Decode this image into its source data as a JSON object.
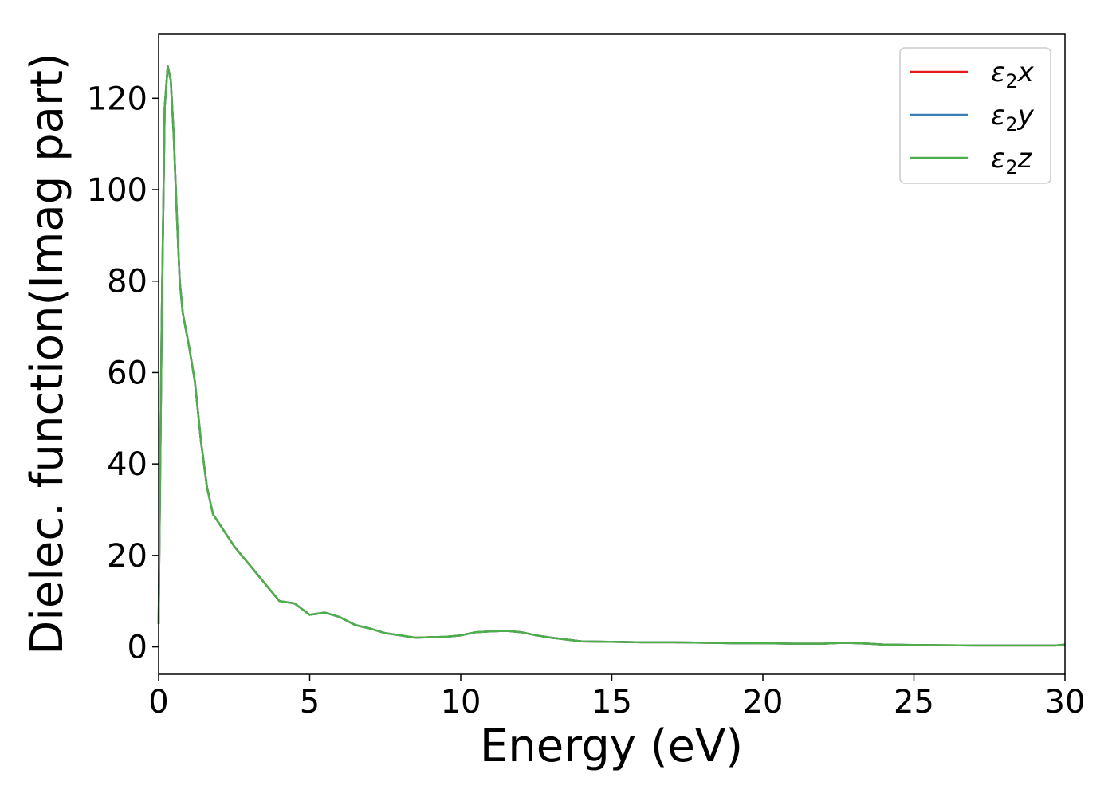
{
  "chart_data": {
    "type": "line",
    "title": "",
    "xlabel": "Energy (eV)",
    "ylabel": "Dielec. function(Imag part)",
    "xlim": [
      0,
      30
    ],
    "ylim": [
      -6,
      134
    ],
    "x_ticks": [
      0,
      5,
      10,
      15,
      20,
      25,
      30
    ],
    "y_ticks": [
      0,
      20,
      40,
      60,
      80,
      100,
      120
    ],
    "grid": false,
    "legend_position": "top-right",
    "series": [
      {
        "name": "ε2x",
        "legend_main": "ε",
        "legend_sub": "2",
        "legend_var": "x",
        "color": "#e41a1c",
        "x": [
          0,
          0.1,
          0.2,
          0.3,
          0.4,
          0.5,
          0.6,
          0.7,
          0.8,
          1.0,
          1.2,
          1.4,
          1.6,
          1.8,
          2.0,
          2.2,
          2.5,
          3.0,
          3.5,
          4.0,
          4.5,
          5.0,
          5.5,
          6.0,
          6.5,
          7.0,
          7.5,
          8.0,
          8.5,
          9.0,
          9.5,
          10.0,
          10.5,
          11.0,
          11.5,
          12.0,
          12.5,
          13.0,
          14.0,
          15.0,
          16.0,
          17.0,
          18.0,
          19.0,
          20.0,
          21.0,
          22.0,
          22.7,
          23.5,
          24.0,
          25.0,
          26.0,
          27.0,
          28.0,
          29.0,
          29.7,
          30.0
        ],
        "y": [
          5,
          70,
          118,
          127,
          124,
          112,
          95,
          80,
          73,
          66,
          58,
          45,
          35,
          29,
          27,
          25,
          22,
          18,
          14,
          10,
          9.5,
          7,
          7.5,
          6.5,
          4.8,
          4,
          3,
          2.5,
          2,
          2.1,
          2.2,
          2.5,
          3.2,
          3.4,
          3.5,
          3.2,
          2.5,
          2,
          1.2,
          1.1,
          1,
          1,
          0.9,
          0.8,
          0.8,
          0.7,
          0.7,
          0.9,
          0.7,
          0.5,
          0.4,
          0.35,
          0.3,
          0.3,
          0.3,
          0.3,
          0.5
        ]
      },
      {
        "name": "ε2y",
        "legend_main": "ε",
        "legend_sub": "2",
        "legend_var": "y",
        "color": "#377eb8",
        "x": [
          0,
          0.1,
          0.2,
          0.3,
          0.4,
          0.5,
          0.6,
          0.7,
          0.8,
          1.0,
          1.2,
          1.4,
          1.6,
          1.8,
          2.0,
          2.2,
          2.5,
          3.0,
          3.5,
          4.0,
          4.5,
          5.0,
          5.5,
          6.0,
          6.5,
          7.0,
          7.5,
          8.0,
          8.5,
          9.0,
          9.5,
          10.0,
          10.5,
          11.0,
          11.5,
          12.0,
          12.5,
          13.0,
          14.0,
          15.0,
          16.0,
          17.0,
          18.0,
          19.0,
          20.0,
          21.0,
          22.0,
          22.7,
          23.5,
          24.0,
          25.0,
          26.0,
          27.0,
          28.0,
          29.0,
          29.7,
          30.0
        ],
        "y": [
          5,
          70,
          118,
          127,
          124,
          112,
          95,
          80,
          73,
          66,
          58,
          45,
          35,
          29,
          27,
          25,
          22,
          18,
          14,
          10,
          9.5,
          7,
          7.5,
          6.5,
          4.8,
          4,
          3,
          2.5,
          2,
          2.1,
          2.2,
          2.5,
          3.2,
          3.4,
          3.5,
          3.2,
          2.5,
          2,
          1.2,
          1.1,
          1,
          1,
          0.9,
          0.8,
          0.8,
          0.7,
          0.7,
          0.9,
          0.7,
          0.5,
          0.4,
          0.35,
          0.3,
          0.3,
          0.3,
          0.3,
          0.5
        ]
      },
      {
        "name": "ε2z",
        "legend_main": "ε",
        "legend_sub": "2",
        "legend_var": "z",
        "color": "#4daf4a",
        "x": [
          0,
          0.1,
          0.2,
          0.3,
          0.4,
          0.5,
          0.6,
          0.7,
          0.8,
          1.0,
          1.2,
          1.4,
          1.6,
          1.8,
          2.0,
          2.2,
          2.5,
          3.0,
          3.5,
          4.0,
          4.5,
          5.0,
          5.5,
          6.0,
          6.5,
          7.0,
          7.5,
          8.0,
          8.5,
          9.0,
          9.5,
          10.0,
          10.5,
          11.0,
          11.5,
          12.0,
          12.5,
          13.0,
          14.0,
          15.0,
          16.0,
          17.0,
          18.0,
          19.0,
          20.0,
          21.0,
          22.0,
          22.7,
          23.5,
          24.0,
          25.0,
          26.0,
          27.0,
          28.0,
          29.0,
          29.7,
          30.0
        ],
        "y": [
          5,
          70,
          118,
          127,
          124,
          112,
          95,
          80,
          73,
          66,
          58,
          45,
          35,
          29,
          27,
          25,
          22,
          18,
          14,
          10,
          9.5,
          7,
          7.5,
          6.5,
          4.8,
          4,
          3,
          2.5,
          2,
          2.1,
          2.2,
          2.5,
          3.2,
          3.4,
          3.5,
          3.2,
          2.5,
          2,
          1.2,
          1.1,
          1,
          1,
          0.9,
          0.8,
          0.8,
          0.7,
          0.7,
          0.9,
          0.7,
          0.5,
          0.4,
          0.35,
          0.3,
          0.3,
          0.3,
          0.3,
          0.5
        ]
      }
    ]
  }
}
